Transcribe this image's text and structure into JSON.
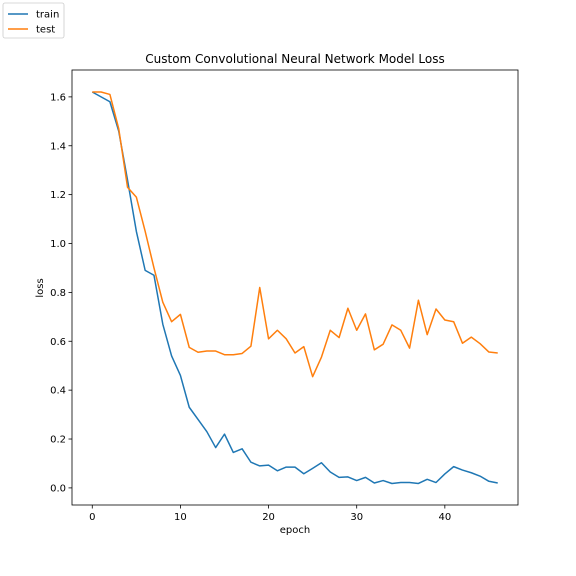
{
  "chart_data": {
    "type": "line",
    "title": "Custom Convolutional Neural Network Model Loss",
    "xlabel": "epoch",
    "ylabel": "loss",
    "xlim": [
      -2.3,
      48.3
    ],
    "ylim": [
      -0.07,
      1.71
    ],
    "xticks": [
      0,
      10,
      20,
      30,
      40
    ],
    "yticks": [
      0.0,
      0.2,
      0.4,
      0.6,
      0.8,
      1.0,
      1.2,
      1.4,
      1.6
    ],
    "grid": false,
    "legend_position": "top-left",
    "x": [
      0,
      1,
      2,
      3,
      4,
      5,
      6,
      7,
      8,
      9,
      10,
      11,
      12,
      13,
      14,
      15,
      16,
      17,
      18,
      19,
      20,
      21,
      22,
      23,
      24,
      25,
      26,
      27,
      28,
      29,
      30,
      31,
      32,
      33,
      34,
      35,
      36,
      37,
      38,
      39,
      40,
      41,
      42,
      43,
      44,
      45,
      46
    ],
    "series": [
      {
        "name": "train",
        "color": "#1f77b4",
        "values": [
          1.62,
          1.6,
          1.58,
          1.46,
          1.26,
          1.05,
          0.89,
          0.87,
          0.67,
          0.54,
          0.46,
          0.33,
          0.28,
          0.23,
          0.165,
          0.22,
          0.145,
          0.16,
          0.105,
          0.09,
          0.093,
          0.07,
          0.085,
          0.085,
          0.058,
          0.08,
          0.103,
          0.065,
          0.043,
          0.045,
          0.03,
          0.043,
          0.02,
          0.03,
          0.018,
          0.022,
          0.022,
          0.018,
          0.035,
          0.022,
          0.057,
          0.087,
          0.073,
          0.062,
          0.048,
          0.027,
          0.02
        ]
      },
      {
        "name": "test",
        "color": "#ff7f0e",
        "values": [
          1.62,
          1.62,
          1.61,
          1.47,
          1.23,
          1.19,
          1.05,
          0.9,
          0.76,
          0.68,
          0.71,
          0.575,
          0.555,
          0.56,
          0.56,
          0.545,
          0.545,
          0.55,
          0.58,
          0.82,
          0.61,
          0.645,
          0.61,
          0.552,
          0.578,
          0.455,
          0.535,
          0.645,
          0.615,
          0.735,
          0.645,
          0.712,
          0.565,
          0.588,
          0.667,
          0.645,
          0.572,
          0.768,
          0.627,
          0.732,
          0.687,
          0.68,
          0.592,
          0.617,
          0.59,
          0.556,
          0.552
        ]
      }
    ]
  }
}
